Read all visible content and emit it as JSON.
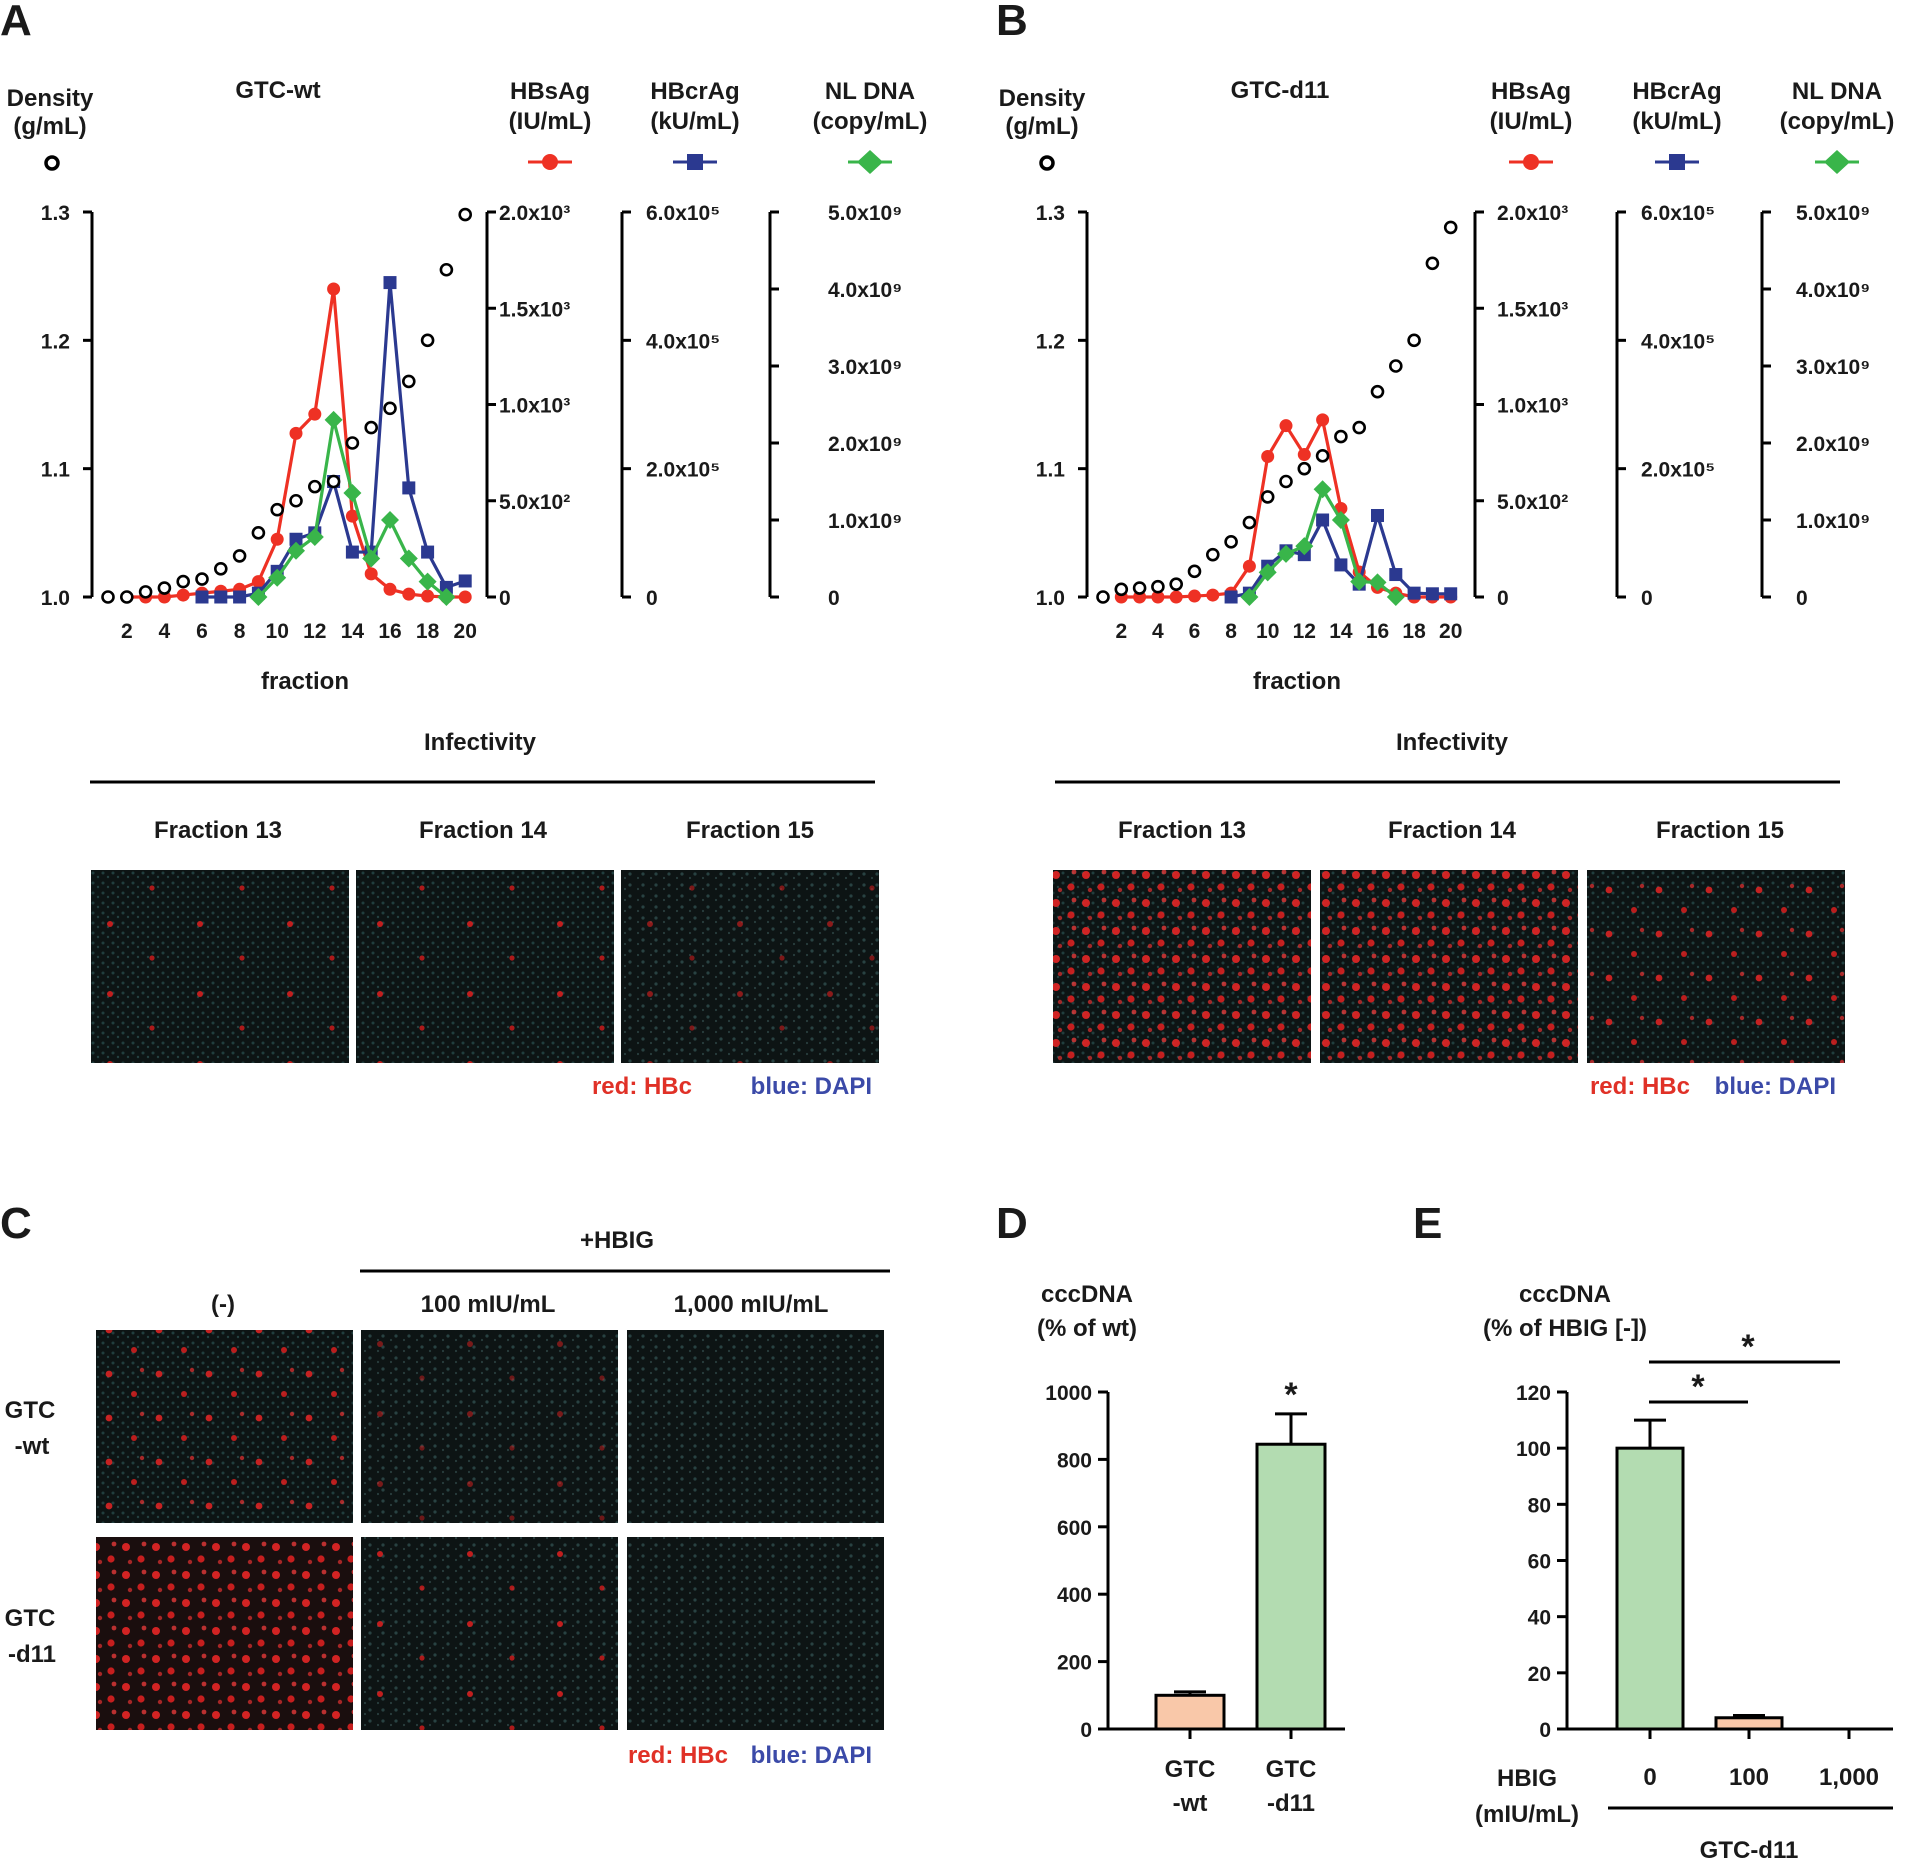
{
  "panel_letters": {
    "a": "A",
    "b": "B",
    "c": "C",
    "d": "D",
    "e": "E"
  },
  "colors": {
    "hbsag": "#ee3124",
    "hbcrag": "#2b3990",
    "nldna": "#39b54a",
    "density": "#000000",
    "bar_wt": "#f9c8a9",
    "bar_d11": "#b3dcb1",
    "red_text": "#e03127",
    "blue_text": "#3b4aa8"
  },
  "micrograph_legend": {
    "red": "red: HBc",
    "blue": "blue: DAPI"
  },
  "panel_a": {
    "title": "GTC-wt",
    "density_label": [
      "Density",
      "(g/mL)"
    ],
    "axis_labels": [
      {
        "name": "HBsAg",
        "unit": "(IU/mL)"
      },
      {
        "name": "HBcrAg",
        "unit": "(kU/mL)"
      },
      {
        "name": "NL DNA",
        "unit": "(copy/mL)"
      }
    ],
    "xlabel": "fraction",
    "infectivity_label": "Infectivity",
    "fraction_labels": [
      "Fraction 13",
      "Fraction 14",
      "Fraction 15"
    ]
  },
  "panel_b": {
    "title": "GTC-d11",
    "density_label": [
      "Density",
      "(g/mL)"
    ],
    "axis_labels": [
      {
        "name": "HBsAg",
        "unit": "(IU/mL)"
      },
      {
        "name": "HBcrAg",
        "unit": "(kU/mL)"
      },
      {
        "name": "NL DNA",
        "unit": "(copy/mL)"
      }
    ],
    "xlabel": "fraction",
    "infectivity_label": "Infectivity",
    "fraction_labels": [
      "Fraction 13",
      "Fraction 14",
      "Fraction 15"
    ]
  },
  "panel_c": {
    "hbig_label": "+HBIG",
    "columns": [
      "(-)",
      "100 mIU/mL",
      "1,000 mIU/mL"
    ],
    "rows": [
      [
        "GTC",
        "-wt"
      ],
      [
        "GTC",
        "-d11"
      ]
    ]
  },
  "panel_d": {
    "ylabel": [
      "cccDNA",
      "(% of wt)"
    ],
    "sig": "*"
  },
  "panel_e": {
    "ylabel": [
      "cccDNA",
      "(% of HBIG [-])"
    ],
    "hbig_axis_label": [
      "HBIG",
      "(mIU/mL)"
    ],
    "group_label": "GTC-d11",
    "sig1": "*",
    "sig2": "*"
  },
  "chart_data": [
    {
      "id": "A",
      "type": "line",
      "title": "GTC-wt",
      "xlabel": "fraction",
      "x": [
        1,
        2,
        3,
        4,
        5,
        6,
        7,
        8,
        9,
        10,
        11,
        12,
        13,
        14,
        15,
        16,
        17,
        18,
        19,
        20
      ],
      "x_ticks": [
        "2",
        "4",
        "6",
        "8",
        "10",
        "12",
        "14",
        "16",
        "18",
        "20"
      ],
      "axes": [
        {
          "name": "Density (g/mL)",
          "range": [
            1.0,
            1.3
          ],
          "ticks": [
            "1.0",
            "1.1",
            "1.2",
            "1.3"
          ]
        },
        {
          "name": "HBsAg (IU/mL)",
          "range": [
            0,
            2000
          ],
          "ticks": [
            "0",
            "5.0x10²",
            "1.0x10³",
            "1.5x10³",
            "2.0x10³"
          ]
        },
        {
          "name": "HBcrAg (kU/mL)",
          "range": [
            0,
            600000
          ],
          "ticks": [
            "0",
            "2.0x10⁵",
            "4.0x10⁵",
            "6.0x10⁵"
          ]
        },
        {
          "name": "NL DNA (copy/mL)",
          "range": [
            0,
            5000000000
          ],
          "ticks": [
            "0",
            "1.0x10⁹",
            "2.0x10⁹",
            "3.0x10⁹",
            "4.0x10⁹",
            "5.0x10⁹"
          ]
        }
      ],
      "series": [
        {
          "name": "Density",
          "axis": 0,
          "marker": "open-circle",
          "x": [
            1,
            2,
            3,
            4,
            5,
            6,
            7,
            8,
            9,
            10,
            11,
            12,
            13,
            14,
            15,
            16,
            17,
            18,
            19,
            20
          ],
          "values": [
            1.0,
            1.0,
            1.004,
            1.007,
            1.012,
            1.014,
            1.022,
            1.032,
            1.05,
            1.068,
            1.075,
            1.086,
            1.09,
            1.12,
            1.132,
            1.147,
            1.168,
            1.2,
            1.255,
            1.298
          ]
        },
        {
          "name": "HBsAg",
          "axis": 1,
          "marker": "circle",
          "x": [
            2,
            3,
            4,
            5,
            6,
            7,
            8,
            9,
            10,
            11,
            12,
            13,
            14,
            15,
            16,
            17,
            18,
            19,
            20
          ],
          "values": [
            0,
            0,
            0,
            10,
            20,
            30,
            40,
            80,
            300,
            850,
            950,
            1600,
            420,
            120,
            40,
            15,
            5,
            0,
            0
          ]
        },
        {
          "name": "HBcrAg",
          "axis": 2,
          "marker": "square",
          "x": [
            6,
            7,
            8,
            9,
            10,
            11,
            12,
            13,
            14,
            15,
            16,
            17,
            18,
            19,
            20
          ],
          "values": [
            0,
            0,
            0,
            6000,
            40000,
            90000,
            100000,
            180000,
            70000,
            70000,
            490000,
            170000,
            70000,
            15000,
            25000
          ]
        },
        {
          "name": "NL DNA",
          "axis": 3,
          "marker": "diamond",
          "x": [
            9,
            10,
            11,
            12,
            13,
            14,
            15,
            16,
            17,
            18,
            19
          ],
          "values": [
            0,
            250000000,
            600000000,
            780000000,
            2300000000,
            1350000000,
            500000000,
            1000000000,
            500000000,
            200000000,
            0
          ]
        }
      ]
    },
    {
      "id": "B",
      "type": "line",
      "title": "GTC-d11",
      "xlabel": "fraction",
      "x": [
        1,
        2,
        3,
        4,
        5,
        6,
        7,
        8,
        9,
        10,
        11,
        12,
        13,
        14,
        15,
        16,
        17,
        18,
        19,
        20
      ],
      "x_ticks": [
        "2",
        "4",
        "6",
        "8",
        "10",
        "12",
        "14",
        "16",
        "18",
        "20"
      ],
      "axes": [
        {
          "name": "Density (g/mL)",
          "range": [
            1.0,
            1.3
          ],
          "ticks": [
            "1.0",
            "1.1",
            "1.2",
            "1.3"
          ]
        },
        {
          "name": "HBsAg (IU/mL)",
          "range": [
            0,
            2000
          ],
          "ticks": [
            "0",
            "5.0x10²",
            "1.0x10³",
            "1.5x10³",
            "2.0x10³"
          ]
        },
        {
          "name": "HBcrAg (kU/mL)",
          "range": [
            0,
            600000
          ],
          "ticks": [
            "0",
            "2.0x10⁵",
            "4.0x10⁵",
            "6.0x10⁵"
          ]
        },
        {
          "name": "NL DNA (copy/mL)",
          "range": [
            0,
            5000000000
          ],
          "ticks": [
            "0",
            "1.0x10⁹",
            "2.0x10⁹",
            "3.0x10⁹",
            "4.0x10⁹",
            "5.0x10⁹"
          ]
        }
      ],
      "series": [
        {
          "name": "Density",
          "axis": 0,
          "marker": "open-circle",
          "x": [
            1,
            2,
            3,
            4,
            5,
            6,
            7,
            8,
            9,
            10,
            11,
            12,
            13,
            14,
            15,
            16,
            17,
            18,
            19,
            20
          ],
          "values": [
            1.0,
            1.006,
            1.007,
            1.008,
            1.01,
            1.02,
            1.033,
            1.043,
            1.058,
            1.078,
            1.09,
            1.1,
            1.11,
            1.125,
            1.132,
            1.16,
            1.18,
            1.2,
            1.26,
            1.288
          ]
        },
        {
          "name": "HBsAg",
          "axis": 1,
          "marker": "circle",
          "x": [
            2,
            3,
            4,
            5,
            6,
            7,
            8,
            9,
            10,
            11,
            12,
            13,
            14,
            15,
            16,
            17,
            18,
            19,
            20
          ],
          "values": [
            0,
            0,
            0,
            0,
            5,
            10,
            20,
            160,
            730,
            890,
            740,
            920,
            460,
            130,
            50,
            20,
            0,
            0,
            0
          ]
        },
        {
          "name": "HBcrAg",
          "axis": 2,
          "marker": "square",
          "x": [
            8,
            9,
            10,
            11,
            12,
            13,
            14,
            15,
            16,
            17,
            18,
            19,
            20
          ],
          "values": [
            0,
            6000,
            48000,
            72000,
            66000,
            120000,
            50000,
            20000,
            127000,
            35000,
            6000,
            5000,
            5000
          ]
        },
        {
          "name": "NL DNA",
          "axis": 3,
          "marker": "diamond",
          "x": [
            9,
            10,
            11,
            12,
            13,
            14,
            15,
            16,
            17
          ],
          "values": [
            0,
            320000000,
            560000000,
            660000000,
            1400000000,
            1000000000,
            200000000,
            190000000,
            0
          ]
        }
      ]
    },
    {
      "id": "D",
      "type": "bar",
      "categories": [
        [
          "GTC",
          "-wt"
        ],
        [
          "GTC",
          "-d11"
        ]
      ],
      "values": [
        100,
        845
      ],
      "errors": [
        10,
        90
      ],
      "significance": "*",
      "ylabel": "cccDNA (% of wt)",
      "ylim": [
        0,
        1000
      ],
      "y_ticks": [
        "0",
        "200",
        "400",
        "600",
        "800",
        "1000"
      ]
    },
    {
      "id": "E",
      "type": "bar",
      "categories": [
        "0",
        "100",
        "1,000"
      ],
      "values": [
        100,
        4,
        0
      ],
      "errors": [
        10,
        0.8,
        0
      ],
      "ylabel": "cccDNA (% of HBIG [-])",
      "xlabel": "HBIG (mIU/mL)",
      "group": "GTC-d11",
      "ylim": [
        0,
        120
      ],
      "y_ticks": [
        "0",
        "20",
        "40",
        "60",
        "80",
        "100",
        "120"
      ]
    }
  ]
}
